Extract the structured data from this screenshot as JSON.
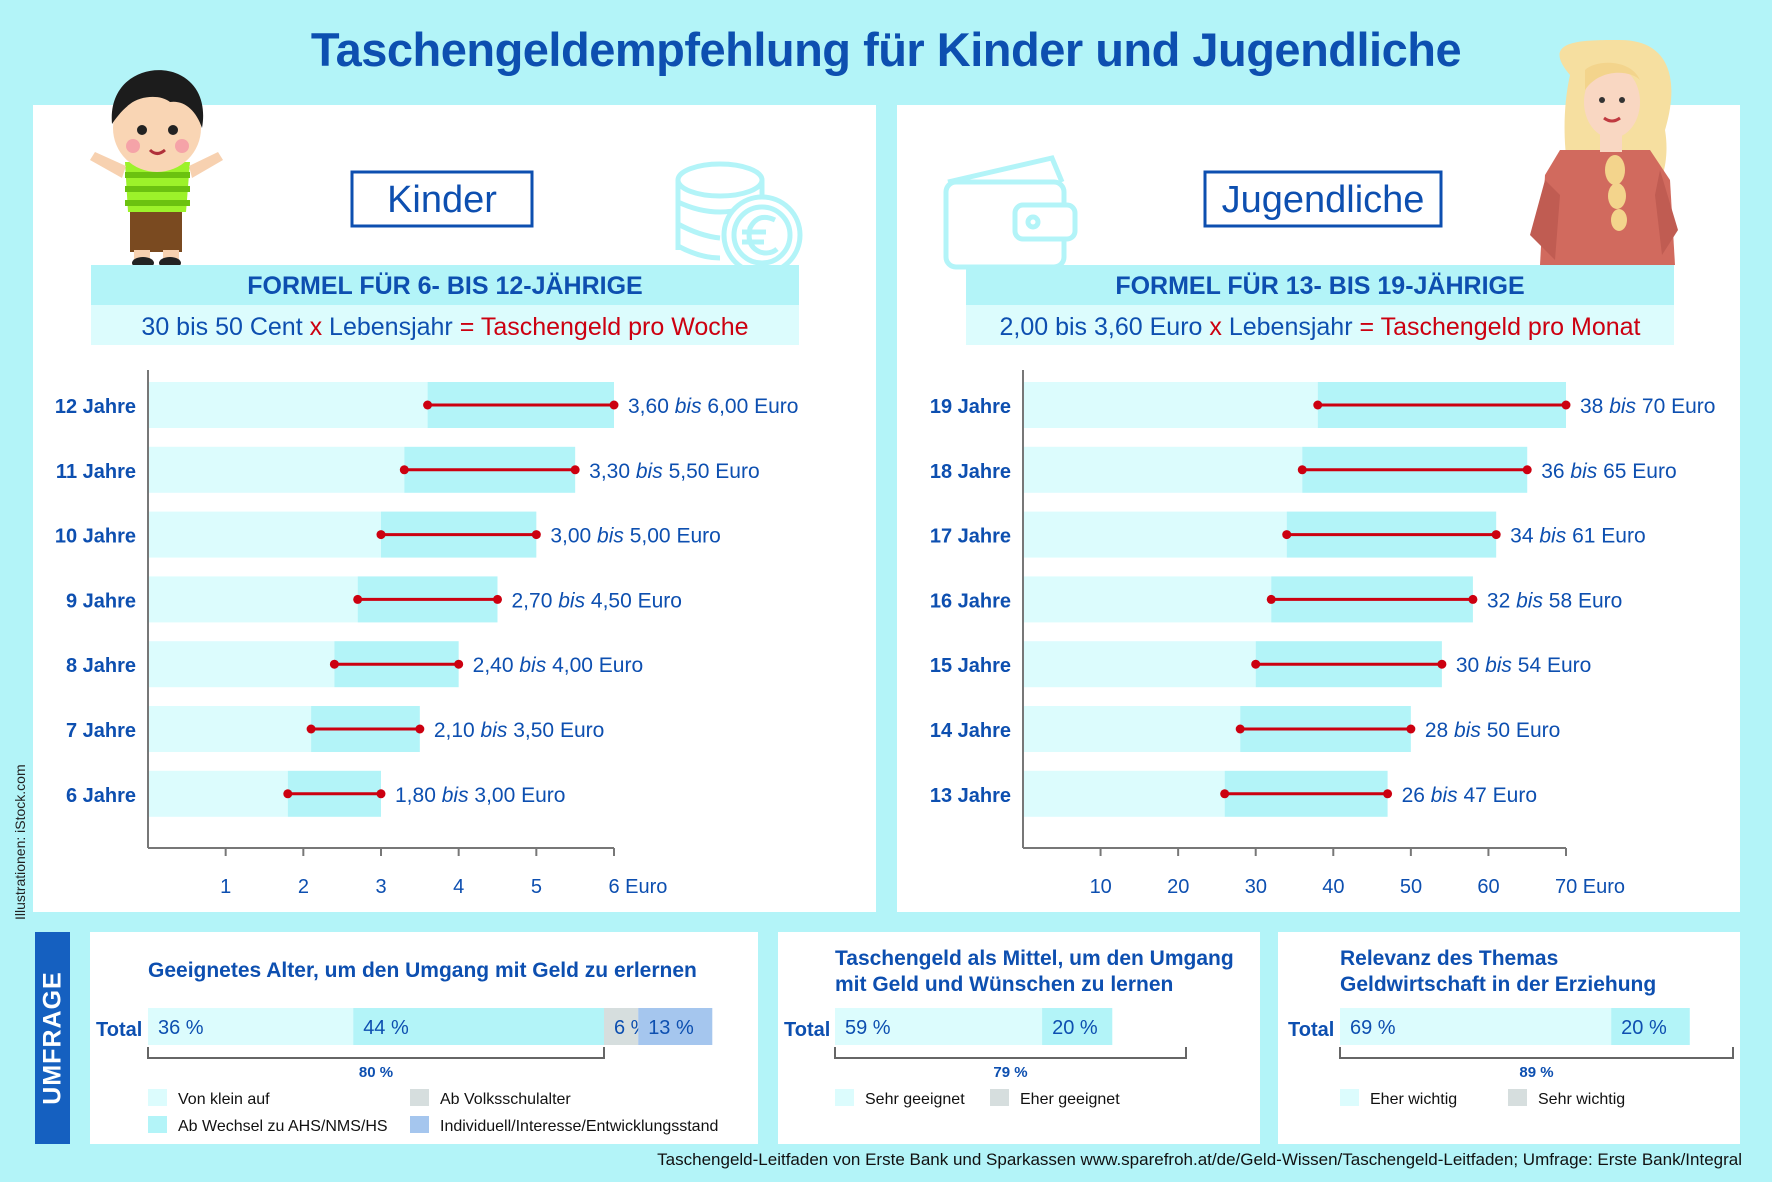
{
  "title": "Taschengeldempfehlung für Kinder und Jugendliche",
  "credit": "Illustrationen: iStock.com",
  "footer": "Taschengeld-Leitfaden von Erste Bank und Sparkassen www.sparefroh.at/de/Geld-Wissen/Taschengeld-Leitfaden; Umfrage: Erste Bank/Integral",
  "umfrage_label": "UMFRAGE",
  "colors": {
    "blue_text": "#0d4fb0",
    "red": "#cc0010",
    "bar_light": "#dcfcfd",
    "bar_main": "#b3f4f8",
    "panel": "#ffffff",
    "gray": "#d6dede",
    "violet": "#a5c6ee"
  },
  "kinder": {
    "heading": "Kinder",
    "formula_title": "FORMEL FÜR 6- BIS 12-JÄHRIGE",
    "formula_part1": "30 bis 50 Cent",
    "formula_x": "x",
    "formula_part2": "Lebensjahr",
    "formula_eq": "=",
    "formula_result": "Taschengeld pro Woche",
    "icon": "coins-euro-icon"
  },
  "jugendliche": {
    "heading": "Jugendliche",
    "formula_title": "FORMEL FÜR 13- BIS 19-JÄHRIGE",
    "formula_part1": "2,00 bis 3,60 Euro",
    "formula_x": "x",
    "formula_part2": "Lebensjahr",
    "formula_eq": "=",
    "formula_result": "Taschengeld pro Monat",
    "icon": "wallet-icon"
  },
  "chart_data": [
    {
      "type": "bar",
      "orientation": "horizontal-range",
      "x_unit": "Euro",
      "xlim": [
        0,
        6
      ],
      "xticks": [
        1,
        2,
        3,
        4,
        5,
        6
      ],
      "xtick_labels": [
        "1",
        "2",
        "3",
        "4",
        "5",
        "6 Euro"
      ],
      "categories": [
        "12 Jahre",
        "11 Jahre",
        "10 Jahre",
        "9 Jahre",
        "8 Jahre",
        "7 Jahre",
        "6 Jahre"
      ],
      "low": [
        3.6,
        3.3,
        3.0,
        2.7,
        2.4,
        2.1,
        1.8
      ],
      "high": [
        6.0,
        5.5,
        5.0,
        4.5,
        4.0,
        3.5,
        3.0
      ],
      "range_labels_low": [
        "3,60",
        "3,30",
        "3,00",
        "2,70",
        "2,40",
        "2,10",
        "1,80"
      ],
      "range_labels_high": [
        "6,00 Euro",
        "5,50 Euro",
        "5,00 Euro",
        "4,50 Euro",
        "4,00 Euro",
        "3,50 Euro",
        "3,00 Euro"
      ],
      "range_word": "bis"
    },
    {
      "type": "bar",
      "orientation": "horizontal-range",
      "x_unit": "Euro",
      "xlim": [
        0,
        70
      ],
      "xticks": [
        10,
        20,
        30,
        40,
        50,
        60,
        70
      ],
      "xtick_labels": [
        "10",
        "20",
        "30",
        "40",
        "50",
        "60",
        "70 Euro"
      ],
      "categories": [
        "19 Jahre",
        "18 Jahre",
        "17 Jahre",
        "16 Jahre",
        "15 Jahre",
        "14 Jahre",
        "13 Jahre"
      ],
      "low": [
        38,
        36,
        34,
        32,
        30,
        28,
        26
      ],
      "high": [
        70,
        65,
        61,
        58,
        54,
        50,
        47
      ],
      "range_labels_low": [
        "38",
        "36",
        "34",
        "32",
        "30",
        "28",
        "26"
      ],
      "range_labels_high": [
        "70 Euro",
        "65 Euro",
        "61 Euro",
        "58 Euro",
        "54 Euro",
        "50 Euro",
        "47 Euro"
      ],
      "range_word": "bis"
    },
    {
      "type": "bar",
      "orientation": "stacked-horizontal",
      "title": "Geeignetes Alter, um den Umgang mit Geld zu erlernen",
      "categories": [
        "Total"
      ],
      "series": [
        {
          "name": "Von klein auf",
          "value": 36,
          "label": "36 %",
          "color": "#dcfcfd"
        },
        {
          "name": "Ab Wechsel zu AHS/NMS/HS",
          "value": 44,
          "label": "44 %",
          "color": "#b3f4f8"
        },
        {
          "name": "Ab Volksschulalter",
          "value": 6,
          "label": "6 %",
          "color": "#d6dede"
        },
        {
          "name": "Individuell/Interesse/Entwicklungsstand",
          "value": 13,
          "label": "13 %",
          "color": "#a5c6ee"
        }
      ],
      "bracket_label": "80 %",
      "bracket_span": [
        0,
        80
      ]
    },
    {
      "type": "bar",
      "orientation": "stacked-horizontal",
      "title": "Taschengeld als Mittel, um den Umgang mit Geld und Wünschen zu lernen",
      "title_lines": [
        "Taschengeld als Mittel, um den Umgang",
        "mit Geld und Wünschen zu lernen"
      ],
      "categories": [
        "Total"
      ],
      "series": [
        {
          "name": "Sehr geeignet",
          "value": 59,
          "label": "59 %",
          "color": "#dcfcfd"
        },
        {
          "name": "Eher geeignet",
          "value": 20,
          "label": "20 %",
          "color": "#b3f4f8"
        }
      ],
      "legend_colors": [
        "#dcfcfd",
        "#d6dede"
      ],
      "bracket_label": "79 %",
      "bracket_span": [
        0,
        100
      ]
    },
    {
      "type": "bar",
      "orientation": "stacked-horizontal",
      "title": "Relevanz des Themas Geldwirtschaft in der Erziehung",
      "title_lines": [
        "Relevanz des Themas",
        "Geldwirtschaft in der Erziehung"
      ],
      "categories": [
        "Total"
      ],
      "series": [
        {
          "name": "Eher wichtig",
          "value": 69,
          "label": "69 %",
          "color": "#dcfcfd"
        },
        {
          "name": "Sehr wichtig",
          "value": 20,
          "label": "20 %",
          "color": "#b3f4f8"
        }
      ],
      "legend_colors": [
        "#dcfcfd",
        "#d6dede"
      ],
      "bracket_label": "89 %",
      "bracket_span": [
        0,
        100
      ]
    }
  ]
}
